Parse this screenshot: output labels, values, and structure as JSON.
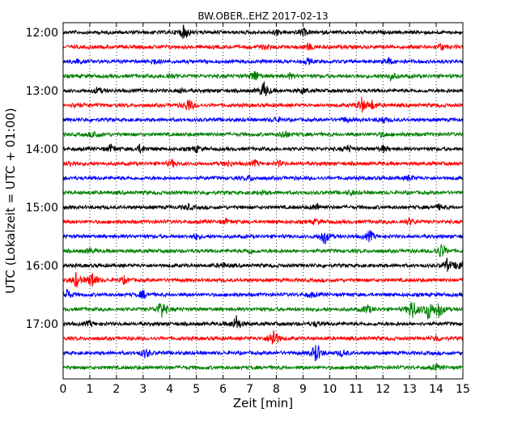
{
  "chart_data": {
    "type": "line",
    "title": "BW.OBER..EHZ 2017-02-13",
    "xlabel": "Zeit  [min]",
    "ylabel": "UTC (Lokalzeit = UTC + 01:00)",
    "xlim": [
      0,
      15
    ],
    "x_ticks": [
      "0",
      "1",
      "2",
      "3",
      "4",
      "5",
      "6",
      "7",
      "8",
      "9",
      "10",
      "11",
      "12",
      "13",
      "14",
      "15"
    ],
    "y_tick_labels": [
      "12:00",
      "13:00",
      "14:00",
      "15:00",
      "16:00",
      "17:00"
    ],
    "grid": "vertical dotted",
    "trace_colors": [
      "#000000",
      "#ff0000",
      "#0000ff",
      "#008000"
    ],
    "trace_interval_min": 15,
    "traces": [
      {
        "start": "12:00",
        "events": [
          [
            4.55,
            10
          ],
          [
            9.0,
            5
          ],
          [
            8.0,
            3
          ]
        ]
      },
      {
        "start": "12:15",
        "events": [
          [
            9.2,
            4
          ],
          [
            14.2,
            4
          ],
          [
            7.6,
            3
          ]
        ]
      },
      {
        "start": "12:30",
        "events": [
          [
            0.5,
            3
          ],
          [
            3.4,
            3
          ],
          [
            12.2,
            4
          ],
          [
            9.2,
            3
          ]
        ]
      },
      {
        "start": "12:45",
        "events": [
          [
            4.0,
            4
          ],
          [
            7.2,
            8
          ],
          [
            8.5,
            3
          ],
          [
            12.3,
            5
          ]
        ]
      },
      {
        "start": "13:00",
        "events": [
          [
            7.55,
            11
          ],
          [
            1.3,
            4
          ],
          [
            4.4,
            3
          ],
          [
            9.0,
            3
          ]
        ]
      },
      {
        "start": "13:15",
        "events": [
          [
            4.7,
            9
          ],
          [
            11.2,
            9
          ],
          [
            11.6,
            5
          ],
          [
            0.5,
            3
          ]
        ]
      },
      {
        "start": "13:30",
        "events": [
          [
            8.0,
            3
          ],
          [
            10.6,
            3
          ],
          [
            12.0,
            4
          ]
        ]
      },
      {
        "start": "13:45",
        "events": [
          [
            1.2,
            5
          ],
          [
            8.3,
            5
          ],
          [
            12.0,
            3
          ]
        ]
      },
      {
        "start": "14:00",
        "events": [
          [
            1.8,
            5
          ],
          [
            2.9,
            5
          ],
          [
            5.0,
            4
          ],
          [
            10.7,
            4
          ],
          [
            12.0,
            4
          ]
        ]
      },
      {
        "start": "14:15",
        "events": [
          [
            0.3,
            4
          ],
          [
            4.1,
            4
          ],
          [
            6.2,
            3
          ],
          [
            7.2,
            3
          ],
          [
            8.1,
            3
          ]
        ]
      },
      {
        "start": "14:30",
        "events": [
          [
            7.0,
            3
          ],
          [
            13.0,
            3
          ]
        ]
      },
      {
        "start": "14:45",
        "events": [
          [
            10.8,
            3
          ],
          [
            7.5,
            2
          ]
        ]
      },
      {
        "start": "15:00",
        "events": [
          [
            4.7,
            3
          ],
          [
            9.5,
            4
          ],
          [
            14.1,
            3
          ]
        ]
      },
      {
        "start": "15:15",
        "events": [
          [
            6.1,
            3
          ],
          [
            9.5,
            3
          ],
          [
            13.0,
            4
          ]
        ]
      },
      {
        "start": "15:30",
        "events": [
          [
            9.8,
            10
          ],
          [
            11.5,
            7
          ],
          [
            5.0,
            3
          ]
        ]
      },
      {
        "start": "15:45",
        "events": [
          [
            14.2,
            10
          ],
          [
            1.0,
            3
          ],
          [
            7.0,
            3
          ]
        ]
      },
      {
        "start": "16:00",
        "events": [
          [
            14.4,
            8
          ],
          [
            14.9,
            7
          ],
          [
            6.0,
            3
          ]
        ]
      },
      {
        "start": "16:15",
        "events": [
          [
            0.5,
            9
          ],
          [
            1.1,
            11
          ],
          [
            2.3,
            4
          ]
        ]
      },
      {
        "start": "16:30",
        "events": [
          [
            0.1,
            9
          ],
          [
            3.0,
            5
          ],
          [
            9.3,
            3
          ]
        ]
      },
      {
        "start": "16:45",
        "events": [
          [
            3.7,
            12
          ],
          [
            11.4,
            6
          ],
          [
            13.1,
            14
          ],
          [
            13.7,
            13
          ],
          [
            14.1,
            11
          ]
        ]
      },
      {
        "start": "17:00",
        "events": [
          [
            6.5,
            10
          ],
          [
            1.0,
            3
          ],
          [
            9.5,
            3
          ]
        ]
      },
      {
        "start": "17:15",
        "events": [
          [
            7.9,
            14
          ],
          [
            14.0,
            4
          ]
        ]
      },
      {
        "start": "17:30",
        "events": [
          [
            9.5,
            13
          ],
          [
            3.1,
            6
          ],
          [
            10.5,
            4
          ]
        ]
      },
      {
        "start": "17:45",
        "events": [
          [
            14.0,
            3
          ]
        ]
      }
    ]
  }
}
